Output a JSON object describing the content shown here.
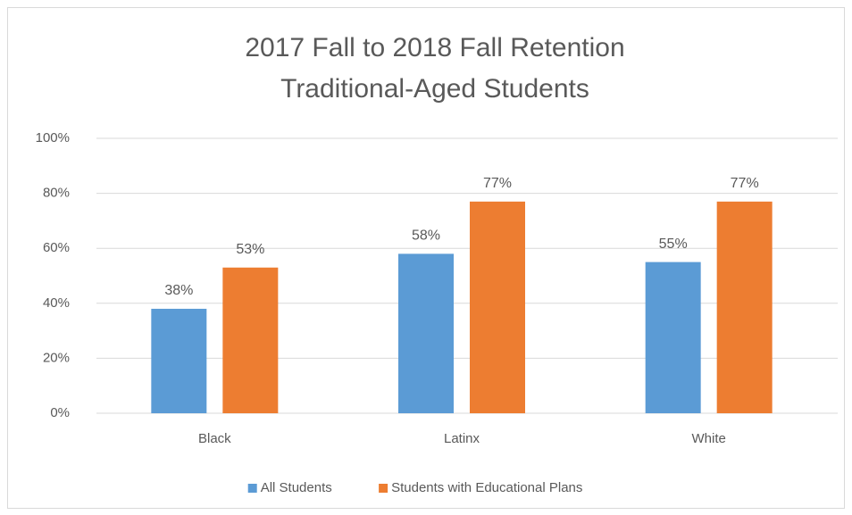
{
  "chart_data": {
    "type": "bar",
    "title": "2017 Fall to 2018 Fall Retention",
    "subtitle": "Traditional-Aged Students",
    "categories": [
      "Black",
      "Latinx",
      "White"
    ],
    "series": [
      {
        "name": "All Students",
        "color": "#5b9bd5",
        "values": [
          38,
          58,
          55
        ],
        "value_labels": [
          "38%",
          "58%",
          "55%"
        ]
      },
      {
        "name": "Students with Educational Plans",
        "color": "#ed7d31",
        "values": [
          53,
          77,
          77
        ],
        "value_labels": [
          "53%",
          "77%",
          "77%"
        ]
      }
    ],
    "ylim": [
      0,
      100
    ],
    "yticks": [
      {
        "value": 0,
        "label": "0%"
      },
      {
        "value": 20,
        "label": "20%"
      },
      {
        "value": 40,
        "label": "40%"
      },
      {
        "value": 60,
        "label": "60%"
      },
      {
        "value": 80,
        "label": "80%"
      },
      {
        "value": 100,
        "label": "100%"
      }
    ],
    "grid": true,
    "legend": "bottom"
  }
}
